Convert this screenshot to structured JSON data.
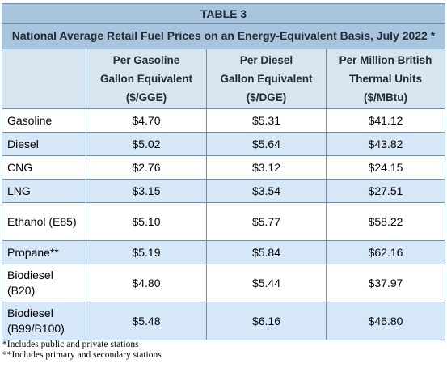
{
  "table": {
    "label": "TABLE 3",
    "title": "National Average Retail Fuel Prices on an Energy-Equivalent Basis, July 2022 *",
    "columns": [
      {
        "line1": "Per Gasoline",
        "line2": "Gallon Equivalent",
        "line3": "($/GGE)"
      },
      {
        "line1": "Per Diesel",
        "line2": "Gallon Equivalent",
        "line3": "($/DGE)"
      },
      {
        "line1": "Per Million British",
        "line2": "Thermal Units",
        "line3": "($/MBtu)"
      }
    ],
    "rows": [
      {
        "fuel": "Gasoline",
        "gge": "$4.70",
        "dge": "$5.31",
        "mbtu": "$41.12"
      },
      {
        "fuel": "Diesel",
        "gge": "$5.02",
        "dge": "$5.64",
        "mbtu": "$43.82"
      },
      {
        "fuel": "CNG",
        "gge": "$2.76",
        "dge": "$3.12",
        "mbtu": "$24.15"
      },
      {
        "fuel": "LNG",
        "gge": "$3.15",
        "dge": "$3.54",
        "mbtu": "$27.51"
      },
      {
        "fuel": "Ethanol (E85)",
        "gge": "$5.10",
        "dge": "$5.77",
        "mbtu": "$58.22"
      },
      {
        "fuel": "Propane**",
        "gge": "$5.19",
        "dge": "$5.84",
        "mbtu": "$62.16"
      },
      {
        "fuel": "Biodiesel (B20)",
        "gge": "$4.80",
        "dge": "$5.44",
        "mbtu": "$37.97"
      },
      {
        "fuel": "Biodiesel (B99/B100)",
        "gge": "$5.48",
        "dge": "$6.16",
        "mbtu": "$46.80"
      }
    ]
  },
  "footnotes": [
    "*Includes public and private stations",
    "**Includes primary and secondary stations"
  ]
}
